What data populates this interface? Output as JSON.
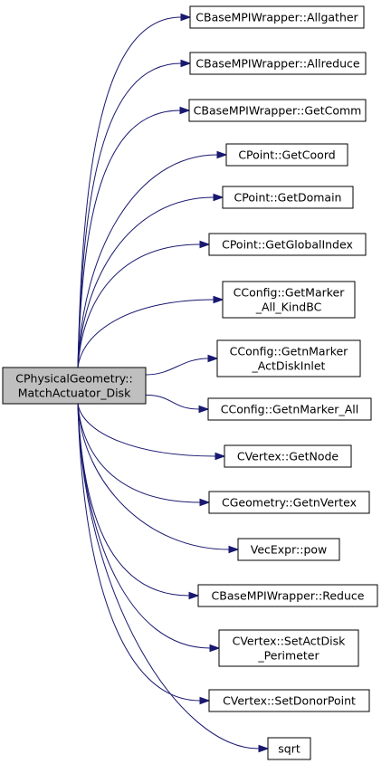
{
  "root": {
    "lines": [
      "CPhysicalGeometry::",
      "MatchActuator_Disk"
    ]
  },
  "callees": [
    {
      "id": "allgather",
      "lines": [
        "CBaseMPIWrapper::Allgather"
      ]
    },
    {
      "id": "allreduce",
      "lines": [
        "CBaseMPIWrapper::Allreduce"
      ]
    },
    {
      "id": "getcomm",
      "lines": [
        "CBaseMPIWrapper::GetComm"
      ]
    },
    {
      "id": "getcoord",
      "lines": [
        "CPoint::GetCoord"
      ]
    },
    {
      "id": "getdomain",
      "lines": [
        "CPoint::GetDomain"
      ]
    },
    {
      "id": "getglobalindex",
      "lines": [
        "CPoint::GetGlobalIndex"
      ]
    },
    {
      "id": "getmarker-all-kindbc",
      "lines": [
        "CConfig::GetMarker",
        "_All_KindBC"
      ]
    },
    {
      "id": "getnmarker-actdiskinlet",
      "lines": [
        "CConfig::GetnMarker",
        "_ActDiskInlet"
      ]
    },
    {
      "id": "getnmarker-all",
      "lines": [
        "CConfig::GetnMarker_All"
      ]
    },
    {
      "id": "getnode",
      "lines": [
        "CVertex::GetNode"
      ]
    },
    {
      "id": "getnvertex",
      "lines": [
        "CGeometry::GetnVertex"
      ]
    },
    {
      "id": "pow",
      "lines": [
        "VecExpr::pow"
      ]
    },
    {
      "id": "reduce",
      "lines": [
        "CBaseMPIWrapper::Reduce"
      ]
    },
    {
      "id": "setactdisk-perimeter",
      "lines": [
        "CVertex::SetActDisk",
        "_Perimeter"
      ]
    },
    {
      "id": "setdonorpoint",
      "lines": [
        "CVertex::SetDonorPoint"
      ]
    },
    {
      "id": "sqrt",
      "lines": [
        "sqrt"
      ]
    }
  ],
  "colors": {
    "edge": "#191970",
    "root_fill": "#bfbfbf",
    "node_fill": "#ffffff",
    "border": "#000000"
  }
}
